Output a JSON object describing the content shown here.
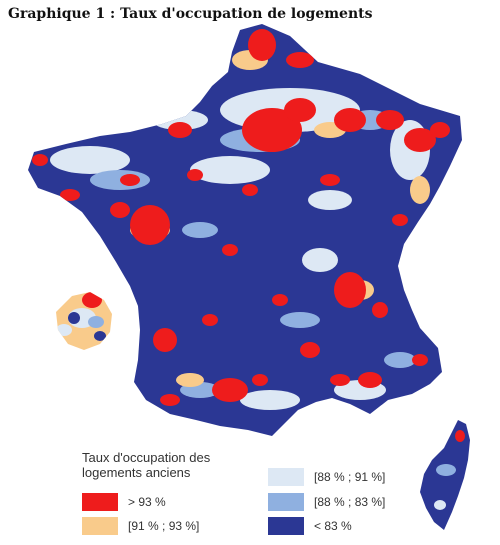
{
  "title": "Graphique 1 : Taux d'occupation de logements",
  "legend": {
    "title": "Taux d'occupation des logements anciens",
    "items": [
      {
        "label": "> 93 %",
        "color": "#ee1c1c"
      },
      {
        "label": "[91 % ; 93 %]",
        "color": "#f9cb8b"
      },
      {
        "label": "[88 % ; 91 %]",
        "color": "#dde8f4"
      },
      {
        "label": "[88 % ; 83 %]",
        "color": "#8fb0e0"
      },
      {
        "label": "< 83 %",
        "color": "#2b3794"
      }
    ]
  },
  "colors": {
    "background": "#ffffff",
    "base": "#2b3794",
    "very_high": "#ee1c1c",
    "high": "#f9cb8b",
    "medium": "#dde8f4",
    "low": "#8fb0e0"
  }
}
